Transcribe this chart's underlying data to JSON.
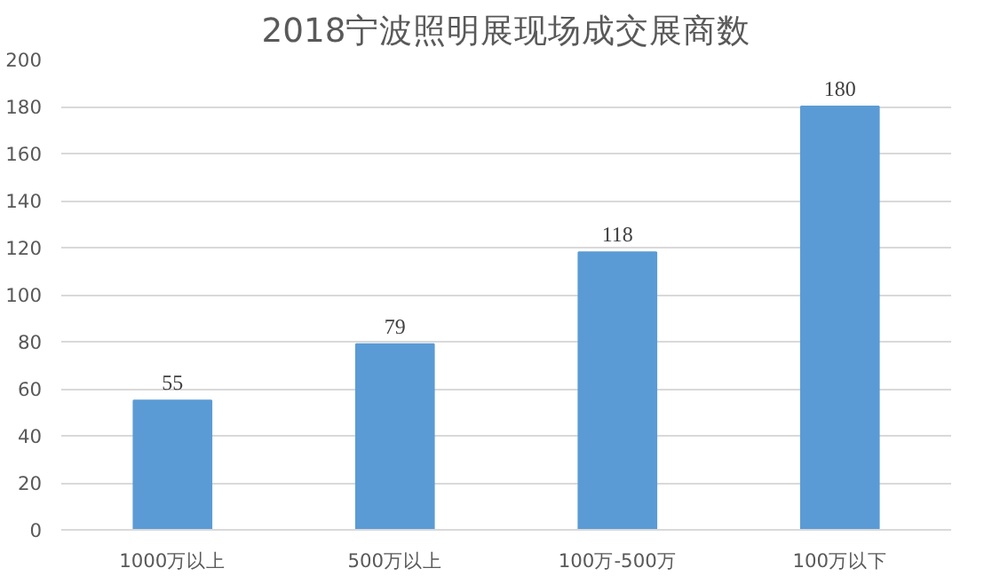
{
  "chart_data": {
    "type": "bar",
    "title": "2018宁波照明展现场成交展商数",
    "categories": [
      "1000万以上",
      "500万以上",
      "100万-500万",
      "100万以下"
    ],
    "values": [
      55,
      79,
      118,
      180
    ],
    "color": "#5b9bd5",
    "ylim": [
      0,
      200
    ],
    "yticks": [
      0,
      20,
      40,
      60,
      80,
      100,
      120,
      140,
      160,
      180,
      200
    ],
    "grid": "y",
    "data_labels": true
  }
}
